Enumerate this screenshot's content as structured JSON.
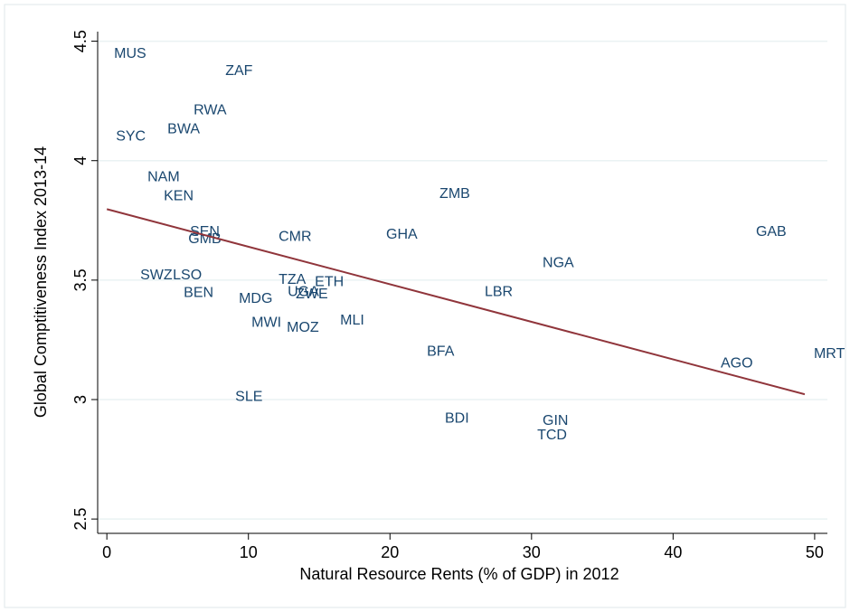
{
  "chart_data": {
    "type": "scatter",
    "x_label": "Natural Resource Rents (% of GDP) in 2012",
    "y_label": "Global Comptitiveness Index 2013-14",
    "labels": [
      "MUS",
      "ZAF",
      "RWA",
      "BWA",
      "SYC",
      "NAM",
      "KEN",
      "ZMB",
      "SEN",
      "GMB",
      "CMR",
      "GHA",
      "GAB",
      "NGA",
      "SWZ",
      "LSO",
      "TZA",
      "ETH",
      "UGA",
      "ZWE",
      "BEN",
      "LBR",
      "MDG",
      "MWI",
      "MOZ",
      "MLI",
      "BFA",
      "AGO",
      "MRT",
      "SLE",
      "BDI",
      "GIN",
      "TCD"
    ],
    "x": [
      0.51,
      8.37,
      6.13,
      4.28,
      0.64,
      2.87,
      4.02,
      23.5,
      5.87,
      5.75,
      12.13,
      19.73,
      45.85,
      30.78,
      2.36,
      4.66,
      12.13,
      14.69,
      12.77,
      13.35,
      5.43,
      26.69,
      9.32,
      10.22,
      12.71,
      16.48,
      22.61,
      43.36,
      49.94,
      9.07,
      23.88,
      30.78,
      30.4
    ],
    "y": [
      4.447,
      4.375,
      4.21,
      4.13,
      4.1,
      3.93,
      3.85,
      3.86,
      3.7,
      3.67,
      3.68,
      3.69,
      3.7,
      3.57,
      3.52,
      3.52,
      3.5,
      3.49,
      3.45,
      3.44,
      3.445,
      3.45,
      3.42,
      3.32,
      3.3,
      3.33,
      3.2,
      3.15,
      3.19,
      3.01,
      2.92,
      2.91,
      2.85
    ],
    "color": "#1a476f",
    "fit": {
      "x": [
        0,
        49.3
      ],
      "y": [
        3.797,
        3.022
      ],
      "color": "#90353b"
    },
    "xlim": [
      -0.65,
      50.9
    ],
    "ylim": [
      2.44,
      4.54
    ],
    "xticks": [
      0,
      10,
      20,
      30,
      40,
      50
    ],
    "yticks": [
      2.5,
      3,
      3.5,
      4,
      4.5
    ],
    "grid": true,
    "grid_color": "#eaf2f3"
  }
}
